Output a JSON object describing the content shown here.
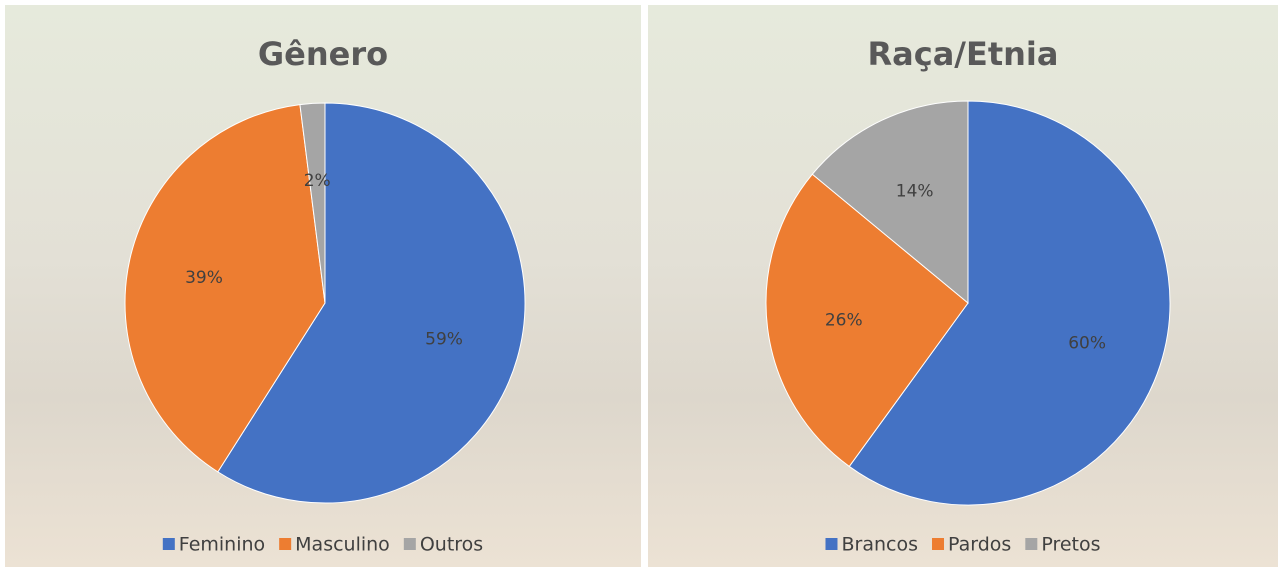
{
  "chart_data": [
    {
      "type": "pie",
      "title": "Gênero",
      "categories": [
        "Feminino",
        "Masculino",
        "Outros"
      ],
      "values": [
        59,
        39,
        2
      ],
      "value_labels": [
        "59%",
        "39%",
        "2%"
      ],
      "colors": [
        "#4472c4",
        "#ed7d31",
        "#a5a5a5"
      ],
      "legend": "bottom"
    },
    {
      "type": "pie",
      "title": "Raça/Etnia",
      "categories": [
        "Brancos",
        "Pardos",
        "Pretos"
      ],
      "values": [
        60,
        26,
        14
      ],
      "value_labels": [
        "60%",
        "26%",
        "14%"
      ],
      "colors": [
        "#4472c4",
        "#ed7d31",
        "#a5a5a5"
      ],
      "legend": "bottom"
    }
  ]
}
